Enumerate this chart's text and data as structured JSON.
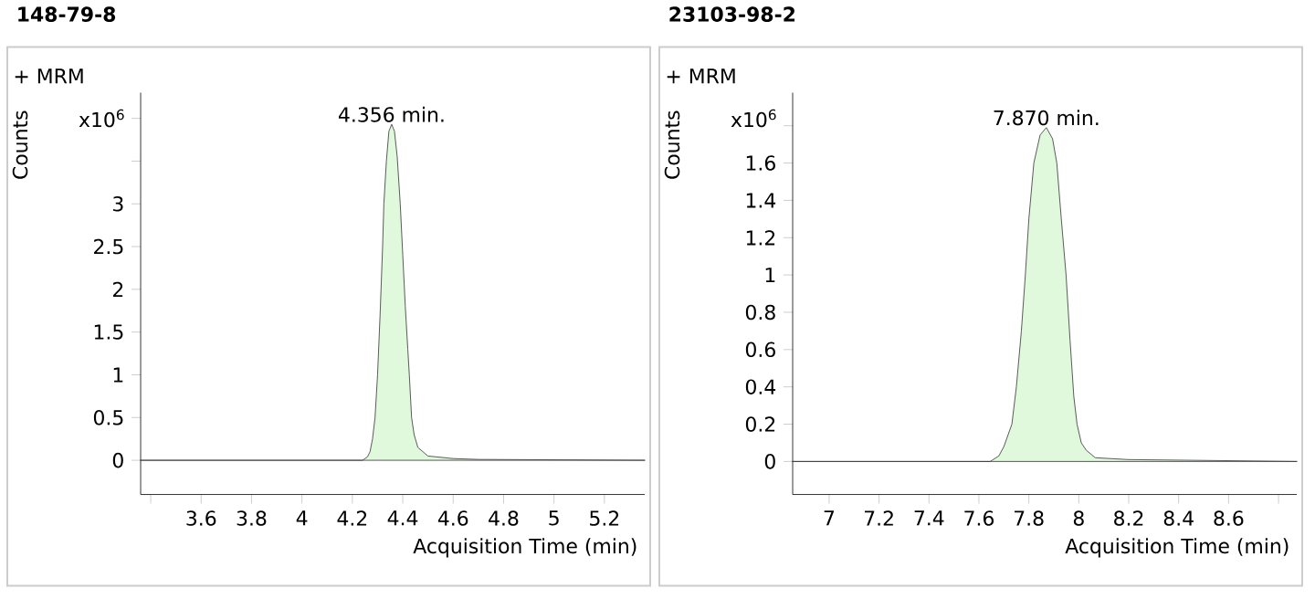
{
  "chart_data": [
    {
      "type": "area",
      "title": "148-79-8",
      "xlabel": "Acquisition Time (min)",
      "ylabel": "Counts",
      "color": "#e0f8dc",
      "annotations": [
        "+ MRM",
        "x10$^{6}$",
        {
          "text": "4.356 min.",
          "x": 4.356,
          "y": 3.93
        }
      ],
      "x": [
        3.36,
        4.2,
        4.24,
        4.26,
        4.27,
        4.28,
        4.29,
        4.3,
        4.31,
        4.32,
        4.325,
        4.335,
        4.345,
        4.356,
        4.367,
        4.378,
        4.39,
        4.4,
        4.41,
        4.42,
        4.426,
        4.435,
        4.445,
        4.46,
        4.5,
        4.6,
        4.7,
        5.36
      ],
      "values": [
        0,
        0,
        0,
        0.04,
        0.1,
        0.25,
        0.5,
        1.0,
        1.7,
        2.5,
        3.0,
        3.5,
        3.85,
        3.93,
        3.85,
        3.55,
        3.0,
        2.4,
        1.8,
        1.3,
        1.0,
        0.5,
        0.3,
        0.15,
        0.05,
        0.02,
        0.01,
        0
      ],
      "xlim": [
        3.36,
        5.36
      ],
      "ylim": [
        -0.4,
        4.3
      ],
      "xticks": [
        {
          "value": 3.4,
          "label": null
        },
        3.6,
        3.8,
        4,
        4.2,
        4.4,
        4.6,
        4.8,
        5,
        5.2
      ],
      "yticks": [
        0,
        0.5,
        1,
        1.5,
        2,
        2.5,
        3,
        {
          "value": 3.5,
          "label": null
        },
        {
          "value": 4,
          "label": null
        }
      ]
    },
    {
      "type": "area",
      "title": "23103-98-2",
      "xlabel": "Acquisition Time (min)",
      "ylabel": "Counts",
      "color": "#e0f8dc",
      "annotations": [
        "+ MRM",
        "x10$^{6}$",
        {
          "text": "7.870 min.",
          "x": 7.87,
          "y": 1.79
        }
      ],
      "x": [
        6.854,
        7.6,
        7.645,
        7.68,
        7.7,
        7.732,
        7.75,
        7.77,
        7.786,
        7.8,
        7.82,
        7.845,
        7.87,
        7.895,
        7.912,
        7.93,
        7.949,
        7.965,
        7.98,
        7.993,
        8.01,
        8.03,
        8.066,
        8.2,
        8.873
      ],
      "values": [
        0,
        0,
        0,
        0.03,
        0.08,
        0.2,
        0.4,
        0.7,
        1.0,
        1.3,
        1.6,
        1.75,
        1.79,
        1.73,
        1.6,
        1.3,
        1.0,
        0.65,
        0.35,
        0.2,
        0.1,
        0.06,
        0.02,
        0.01,
        0
      ],
      "xlim": [
        6.854,
        8.873
      ],
      "ylim": [
        -0.177,
        1.977
      ],
      "xticks": [
        7,
        7.2,
        7.4,
        7.6,
        7.8,
        8,
        8.2,
        8.4,
        8.6,
        {
          "value": 8.8,
          "label": null
        }
      ],
      "yticks": [
        0,
        0.2,
        0.4,
        0.6,
        0.8,
        1,
        1.2,
        1.4,
        1.6,
        {
          "value": 1.8,
          "label": null
        }
      ]
    }
  ]
}
